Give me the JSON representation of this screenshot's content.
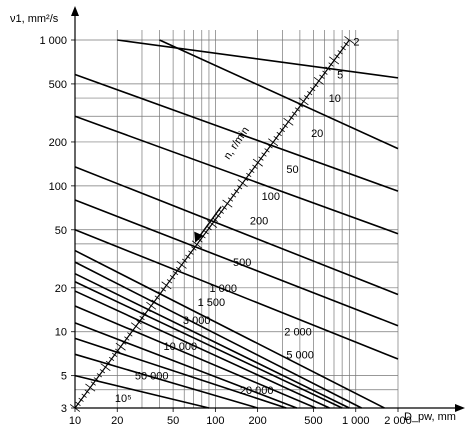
{
  "chart_data": {
    "type": "line",
    "title": "",
    "xlabel": "D_pw, mm",
    "ylabel": "ν1, mm²/s",
    "x_scale": "log",
    "y_scale": "log",
    "xlim": [
      10,
      2000
    ],
    "ylim": [
      3,
      1000
    ],
    "grid": true,
    "x_ticks": [
      {
        "value": 10,
        "label": "10"
      },
      {
        "value": 20,
        "label": "20"
      },
      {
        "value": 50,
        "label": "50"
      },
      {
        "value": 100,
        "label": "100"
      },
      {
        "value": 200,
        "label": "200"
      },
      {
        "value": 500,
        "label": "500"
      },
      {
        "value": 1000,
        "label": "1 000"
      },
      {
        "value": 2000,
        "label": "2 000"
      }
    ],
    "y_ticks": [
      {
        "value": 3,
        "label": "3"
      },
      {
        "value": 5,
        "label": "5"
      },
      {
        "value": 10,
        "label": "10"
      },
      {
        "value": 20,
        "label": "20"
      },
      {
        "value": 50,
        "label": "50"
      },
      {
        "value": 100,
        "label": "100"
      },
      {
        "value": 200,
        "label": "200"
      },
      {
        "value": 500,
        "label": "500"
      },
      {
        "value": 1000,
        "label": "1 000"
      }
    ],
    "series": [
      {
        "label": "2",
        "x": [
          20,
          2000
        ],
        "y": [
          1000,
          550
        ]
      },
      {
        "label": "5",
        "x": [
          40,
          2000
        ],
        "y": [
          1000,
          180
        ]
      },
      {
        "label": "10",
        "x": [
          10,
          2000
        ],
        "y": [
          580,
          92
        ]
      },
      {
        "label": "20",
        "x": [
          10,
          2000
        ],
        "y": [
          300,
          47
        ]
      },
      {
        "label": "50",
        "x": [
          10,
          2000
        ],
        "y": [
          135,
          18
        ]
      },
      {
        "label": "100",
        "x": [
          10,
          2000
        ],
        "y": [
          80,
          11
        ]
      },
      {
        "label": "200",
        "x": [
          10,
          2000
        ],
        "y": [
          50,
          6.5
        ]
      },
      {
        "label": "500",
        "x": [
          10,
          1600
        ],
        "y": [
          36,
          3
        ]
      },
      {
        "label": "1 000",
        "x": [
          10,
          1100
        ],
        "y": [
          30,
          3
        ]
      },
      {
        "label": "1 500",
        "x": [
          10,
          900
        ],
        "y": [
          25,
          3
        ]
      },
      {
        "label": "2 000",
        "x": [
          10,
          800
        ],
        "y": [
          22,
          3
        ]
      },
      {
        "label": "3 000",
        "x": [
          10,
          650
        ],
        "y": [
          19,
          3
        ]
      },
      {
        "label": "5 000",
        "x": [
          10,
          520
        ],
        "y": [
          15,
          3
        ]
      },
      {
        "label": "10 000",
        "x": [
          10,
          380
        ],
        "y": [
          11.5,
          3
        ]
      },
      {
        "label": "20 000",
        "x": [
          10,
          320
        ],
        "y": [
          9,
          3
        ]
      },
      {
        "label": "50 000",
        "x": [
          10,
          200
        ],
        "y": [
          7,
          3
        ]
      },
      {
        "label": "10⁵",
        "x": [
          10,
          90
        ],
        "y": [
          5,
          3
        ]
      }
    ],
    "n_scale": {
      "label": "n, r/min",
      "line": {
        "x": [
          10,
          900
        ],
        "y": [
          3,
          1000
        ]
      },
      "marks": [
        {
          "label": "2",
          "x": 900,
          "y": 980
        },
        {
          "label": "5",
          "x": 690,
          "y": 580
        },
        {
          "label": "10",
          "x": 600,
          "y": 400
        },
        {
          "label": "20",
          "x": 450,
          "y": 230
        },
        {
          "label": "50",
          "x": 300,
          "y": 130
        },
        {
          "label": "100",
          "x": 200,
          "y": 85
        },
        {
          "label": "200",
          "x": 165,
          "y": 58
        },
        {
          "label": "500",
          "x": 125,
          "y": 30
        },
        {
          "label": "1 000",
          "x": 85,
          "y": 20
        },
        {
          "label": "1 500",
          "x": 70,
          "y": 16
        },
        {
          "label": "2 000",
          "x": 290,
          "y": 10
        },
        {
          "label": "3 000",
          "x": 55,
          "y": 12
        },
        {
          "label": "5 000",
          "x": 300,
          "y": 7
        },
        {
          "label": "10 000",
          "x": 40,
          "y": 8
        },
        {
          "label": "20 000",
          "x": 140,
          "y": 4
        },
        {
          "label": "50 000",
          "x": 25,
          "y": 5
        },
        {
          "label": "10⁵",
          "x": 18,
          "y": 3.5
        }
      ]
    }
  }
}
